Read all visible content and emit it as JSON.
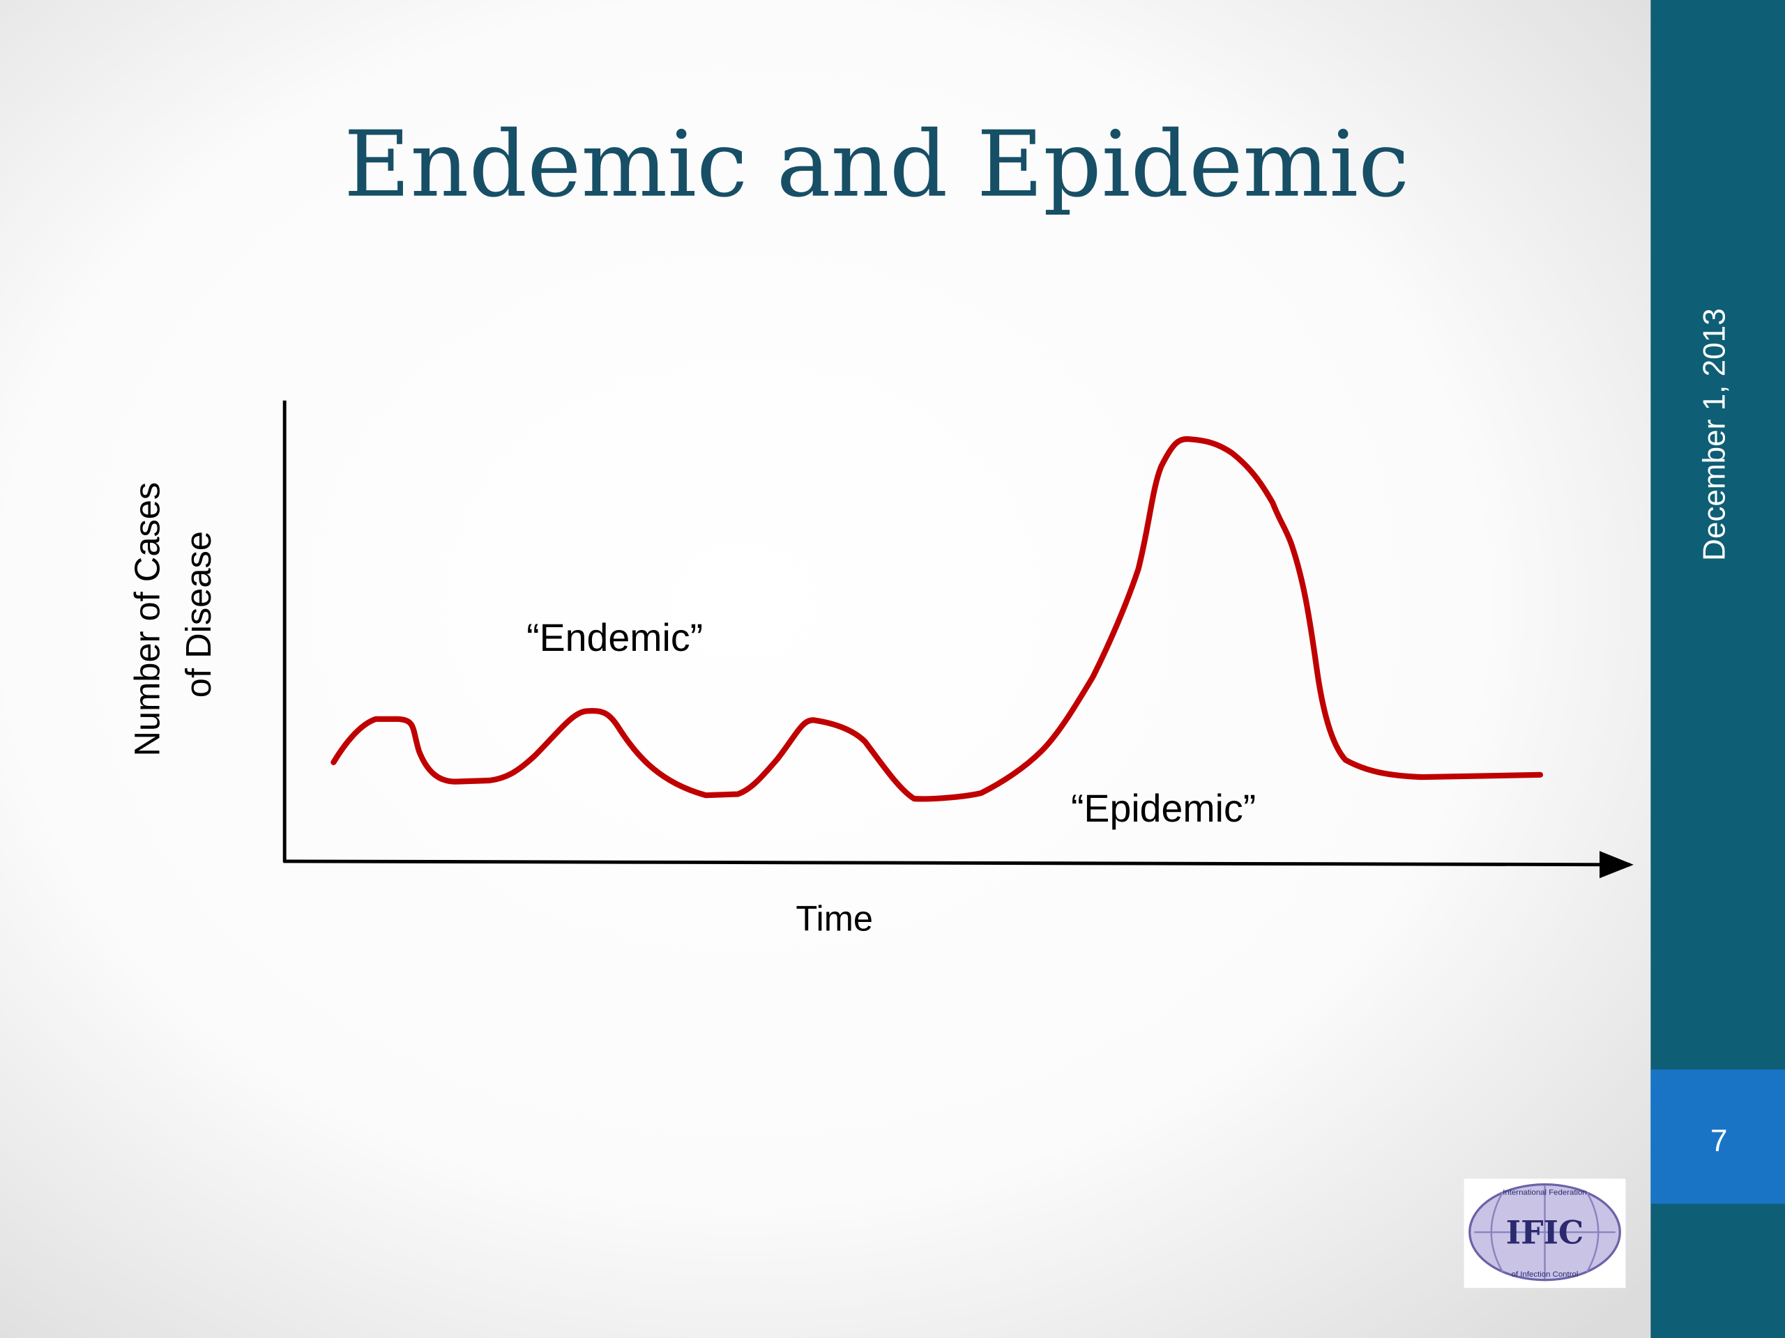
{
  "slide": {
    "title": "Endemic and  Epidemic",
    "date": "December 1, 2013",
    "page_number": "7"
  },
  "diagram": {
    "y_axis_label": [
      "Number of Cases",
      "of Disease"
    ],
    "x_axis_label": "Time",
    "annotations": [
      "“Endemic”",
      "“Epidemic”"
    ]
  },
  "logo": {
    "text": "IFIC",
    "top_text": "International Federation",
    "bottom_text": "of Infection Control"
  }
}
